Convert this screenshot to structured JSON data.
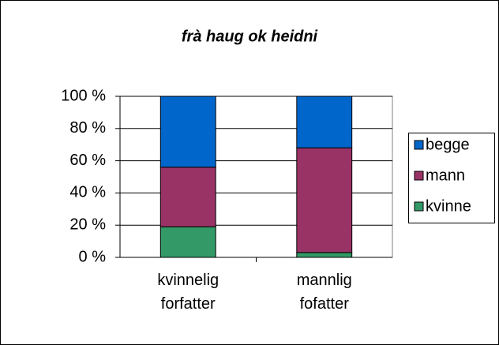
{
  "chart_data": {
    "type": "stacked_bar",
    "title": "frà haug ok heidni",
    "categories": [
      "kvinnelig forfatter",
      "mannlig fofatter"
    ],
    "series": [
      {
        "name": "kvinne",
        "color": "#339966",
        "values": [
          19,
          3
        ]
      },
      {
        "name": "mann",
        "color": "#993366",
        "values": [
          37,
          65
        ]
      },
      {
        "name": "begge",
        "color": "#0066cc",
        "values": [
          44,
          32
        ]
      }
    ],
    "ylim": [
      0,
      100
    ],
    "yticks": [
      {
        "value": 0,
        "label": "0 %"
      },
      {
        "value": 20,
        "label": "20 %"
      },
      {
        "value": 40,
        "label": "40 %"
      },
      {
        "value": 60,
        "label": "60 %"
      },
      {
        "value": 80,
        "label": "80 %"
      },
      {
        "value": 100,
        "label": "100 %"
      }
    ],
    "grid": true,
    "legend": "right"
  }
}
